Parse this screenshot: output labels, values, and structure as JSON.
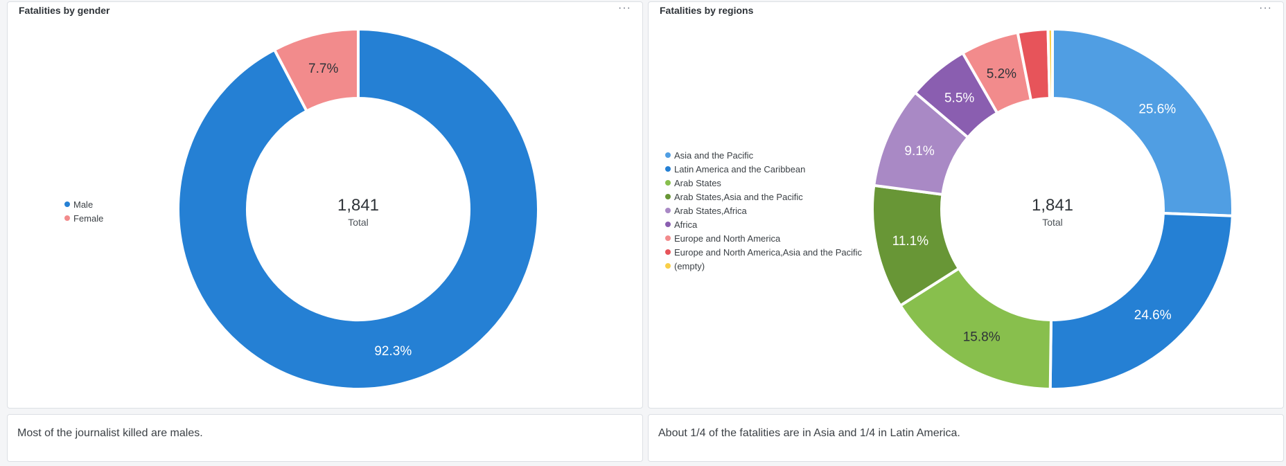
{
  "gender_panel": {
    "title": "Fatalities by gender",
    "menu": "···"
  },
  "regions_panel": {
    "title": "Fatalities by regions",
    "menu": "···"
  },
  "gender_note": {
    "text": "Most of the journalist killed are males."
  },
  "regions_note": {
    "text": "About 1/4 of the fatalities are in Asia and 1/4 in Latin America."
  },
  "chart_data": [
    {
      "type": "pie",
      "donut": true,
      "title": "Fatalities by gender",
      "center_value": "1,841",
      "center_label": "Total",
      "legend_position": "left",
      "slices": [
        {
          "name": "Male",
          "value": 92.3,
          "label": "92.3%",
          "color": "#2580d4"
        },
        {
          "name": "Female",
          "value": 7.7,
          "label": "7.7%",
          "color": "#f28b8c"
        }
      ]
    },
    {
      "type": "pie",
      "donut": true,
      "title": "Fatalities by regions",
      "center_value": "1,841",
      "center_label": "Total",
      "legend_position": "left",
      "slices": [
        {
          "name": "Asia and the Pacific",
          "value": 25.6,
          "label": "25.6%",
          "color": "#509ee3"
        },
        {
          "name": "Latin America and the Caribbean",
          "value": 24.6,
          "label": "24.6%",
          "color": "#2580d4"
        },
        {
          "name": "Arab States",
          "value": 15.8,
          "label": "15.8%",
          "color": "#88bf4d"
        },
        {
          "name": "Arab States,Asia and the Pacific",
          "value": 11.1,
          "label": "11.1%",
          "color": "#689636"
        },
        {
          "name": "Arab States,Africa",
          "value": 9.1,
          "label": "9.1%",
          "color": "#a989c5"
        },
        {
          "name": "Africa",
          "value": 5.5,
          "label": "5.5%",
          "color": "#8a5eb0"
        },
        {
          "name": "Europe and North America",
          "value": 5.2,
          "label": "5.2%",
          "color": "#f28b8c"
        },
        {
          "name": "Europe and North America,Asia and the Pacific",
          "value": 2.7,
          "label": "",
          "color": "#e7545a"
        },
        {
          "name": "(empty)",
          "value": 0.4,
          "label": "",
          "color": "#f9cf48"
        }
      ]
    }
  ]
}
